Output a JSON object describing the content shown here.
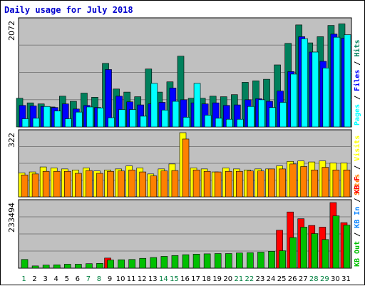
{
  "chart_data": [
    {
      "type": "bar",
      "title": "Daily usage for July 2018",
      "panel": "hits-files-pages",
      "ymax_label": "2072",
      "ylim": [
        0,
        2072
      ],
      "categories": [
        "1",
        "2",
        "3",
        "4",
        "5",
        "6",
        "7",
        "8",
        "9",
        "10",
        "11",
        "12",
        "13",
        "14",
        "15",
        "16",
        "17",
        "18",
        "19",
        "20",
        "21",
        "22",
        "23",
        "24",
        "25",
        "26",
        "27",
        "28",
        "29",
        "30",
        "31"
      ],
      "weekend_days": [
        "1",
        "7",
        "8",
        "14",
        "15",
        "21",
        "22",
        "28",
        "29"
      ],
      "series": [
        {
          "name": "Hits",
          "color": "#00805c",
          "values": [
            560,
            470,
            450,
            390,
            600,
            500,
            660,
            580,
            1240,
            740,
            680,
            590,
            1130,
            680,
            880,
            1380,
            560,
            560,
            600,
            590,
            630,
            870,
            900,
            930,
            1210,
            1630,
            1990,
            1640,
            1760,
            1980,
            2010
          ]
        },
        {
          "name": "Files",
          "color": "#0000ff",
          "values": [
            420,
            410,
            400,
            380,
            450,
            350,
            420,
            380,
            1120,
            600,
            490,
            430,
            450,
            480,
            760,
            530,
            470,
            450,
            470,
            420,
            430,
            530,
            550,
            500,
            700,
            1080,
            1760,
            1460,
            1280,
            1810,
            1730
          ]
        },
        {
          "name": "Pages",
          "color": "#00ffff",
          "values": [
            160,
            170,
            400,
            310,
            160,
            290,
            390,
            370,
            180,
            340,
            340,
            210,
            850,
            330,
            500,
            190,
            850,
            230,
            170,
            150,
            150,
            400,
            530,
            380,
            480,
            1030,
            1720,
            1460,
            1150,
            1750,
            1800
          ]
        }
      ]
    },
    {
      "type": "bar",
      "panel": "sites-visits",
      "ymax_label": "322",
      "ylim": [
        0,
        322
      ],
      "series": [
        {
          "name": "Visits",
          "color": "#ffff00",
          "values": [
            120,
            125,
            150,
            145,
            140,
            135,
            145,
            130,
            135,
            140,
            155,
            145,
            115,
            140,
            165,
            322,
            145,
            140,
            125,
            145,
            140,
            135,
            140,
            140,
            155,
            178,
            180,
            175,
            180,
            170,
            170
          ]
        },
        {
          "name": "Sites",
          "color": "#ff8000",
          "values": [
            110,
            115,
            128,
            128,
            128,
            118,
            132,
            118,
            128,
            130,
            135,
            125,
            105,
            130,
            132,
            290,
            135,
            128,
            125,
            128,
            128,
            130,
            130,
            140,
            140,
            165,
            152,
            135,
            148,
            135,
            135
          ]
        }
      ]
    },
    {
      "type": "bar",
      "panel": "kb-out-in-f",
      "ymax_label": "233494",
      "ylim": [
        0,
        233494
      ],
      "series": [
        {
          "name": "KB F",
          "color": "#ff0000",
          "values": [
            0,
            0,
            0,
            0,
            0,
            0,
            0,
            0,
            36000,
            0,
            0,
            0,
            0,
            0,
            0,
            0,
            0,
            0,
            0,
            0,
            0,
            0,
            0,
            0,
            135000,
            200000,
            176000,
            152000,
            146000,
            233494,
            162000
          ]
        },
        {
          "name": "KB In",
          "color": "#0080ff",
          "values": [
            0,
            0,
            0,
            0,
            0,
            0,
            0,
            0,
            0,
            0,
            0,
            0,
            0,
            0,
            0,
            0,
            0,
            0,
            0,
            0,
            0,
            0,
            0,
            0,
            0,
            0,
            0,
            0,
            0,
            0,
            0
          ]
        },
        {
          "name": "KB Out",
          "color": "#00c000",
          "values": [
            31000,
            8000,
            11000,
            12000,
            14000,
            14000,
            16000,
            17000,
            29000,
            30000,
            31000,
            35000,
            38000,
            42000,
            45000,
            48000,
            50000,
            51000,
            52000,
            52000,
            54000,
            55000,
            57000,
            60000,
            62000,
            109000,
            146000,
            123000,
            102000,
            186000,
            153000
          ]
        }
      ]
    }
  ]
}
